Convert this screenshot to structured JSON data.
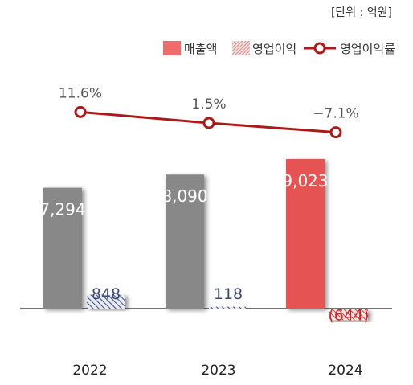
{
  "chart_data": {
    "type": "bar",
    "unit_note": "[단위 : 억원]",
    "categories": [
      "2022",
      "2023",
      "2024"
    ],
    "series": [
      {
        "name": "매출액",
        "kind": "bar",
        "values": [
          7294,
          8090,
          9023
        ],
        "labels": [
          "7,294",
          "8,090",
          "9,023"
        ],
        "colors": [
          "#888888",
          "#888888",
          "#e55353"
        ]
      },
      {
        "name": "영업이익",
        "kind": "bar",
        "pattern": "hatched",
        "values": [
          848,
          118,
          -644
        ],
        "labels": [
          "848",
          "118",
          "(644)"
        ],
        "colors": [
          "#3d4a75",
          "#3d4a75",
          "#c62828"
        ]
      },
      {
        "name": "영업이익률",
        "kind": "line",
        "values": [
          11.6,
          1.5,
          -7.1
        ],
        "labels": [
          "11.6%",
          "1.5%",
          "−7.1%"
        ],
        "color": "#b01818"
      }
    ],
    "legend": {
      "position": "top-right",
      "items": [
        "매출액",
        "영업이익",
        "영업이익률"
      ],
      "colors": [
        "#f26b6b",
        "#c97373",
        "#b01818"
      ]
    },
    "grid": false
  }
}
